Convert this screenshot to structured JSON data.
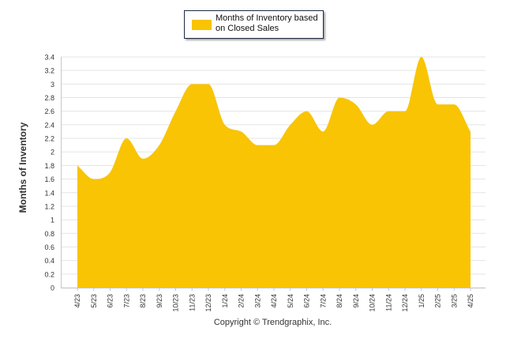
{
  "chart_data": {
    "type": "area",
    "title": "",
    "xlabel": "",
    "ylabel": "Months of Inventory",
    "ylim": [
      0,
      3.4
    ],
    "yticks": [
      "0",
      "0.2",
      "0.4",
      "0.6",
      "0.8",
      "1",
      "1.2",
      "1.4",
      "1.6",
      "1.8",
      "2",
      "2.2",
      "2.4",
      "2.6",
      "2.8",
      "3",
      "3.2",
      "3.4"
    ],
    "grid": true,
    "legend_position": "top-center",
    "categories": [
      "4/23",
      "5/23",
      "6/23",
      "7/23",
      "8/23",
      "9/23",
      "10/23",
      "11/23",
      "12/23",
      "1/24",
      "2/24",
      "3/24",
      "4/24",
      "5/24",
      "6/24",
      "7/24",
      "8/24",
      "9/24",
      "10/24",
      "11/24",
      "12/24",
      "1/25",
      "2/25",
      "3/25",
      "4/25"
    ],
    "series": [
      {
        "name": "Months of Inventory based on Closed Sales",
        "color": "#f8c404",
        "values": [
          1.8,
          1.6,
          1.7,
          2.2,
          1.9,
          2.1,
          2.6,
          3.0,
          3.0,
          2.4,
          2.3,
          2.1,
          2.1,
          2.4,
          2.6,
          2.3,
          2.8,
          2.7,
          2.4,
          2.6,
          2.6,
          3.4,
          2.7,
          2.7,
          2.3
        ]
      }
    ]
  },
  "legend": {
    "label": "Months of Inventory based on Closed Sales"
  },
  "footer": {
    "copyright": "Copyright © Trendgraphix, Inc."
  },
  "colors": {
    "series": "#f8c404",
    "grid": "#e4e4e4",
    "axis": "#c6c6c6"
  }
}
